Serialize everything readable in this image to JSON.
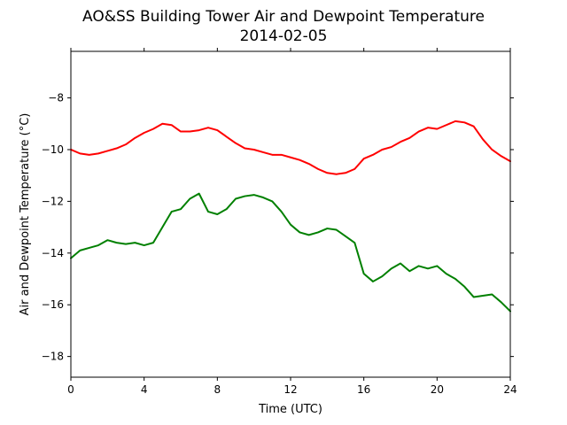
{
  "chart_data": {
    "type": "line",
    "title": "AO&SS Building Tower Air and Dewpoint Temperature",
    "subtitle": "2014-02-05",
    "xlabel": "Time (UTC)",
    "ylabel": "Air and Dewpoint Temperature (°C)",
    "xlim": [
      0,
      24
    ],
    "ylim": [
      -18.8,
      -6.2
    ],
    "xticks": [
      0,
      4,
      8,
      12,
      16,
      20,
      24
    ],
    "xtick_labels": [
      "0",
      "4",
      "8",
      "12",
      "16",
      "20",
      "24"
    ],
    "yticks": [
      -18,
      -16,
      -14,
      -12,
      -10,
      -8
    ],
    "ytick_labels": [
      "−18",
      "−16",
      "−14",
      "−12",
      "−10",
      "−8"
    ],
    "grid": false,
    "series": [
      {
        "color": "#ff0000",
        "x": [
          0,
          0.5,
          1,
          1.5,
          2,
          2.5,
          3,
          3.5,
          4,
          4.5,
          5,
          5.5,
          6,
          6.5,
          7,
          7.5,
          8,
          8.5,
          9,
          9.5,
          10,
          10.5,
          11,
          11.5,
          12,
          12.5,
          13,
          13.5,
          14,
          14.5,
          15,
          15.5,
          16,
          16.5,
          17,
          17.5,
          18,
          18.5,
          19,
          19.5,
          20,
          20.5,
          21,
          21.5,
          22,
          22.5,
          23,
          23.5,
          24
        ],
        "y": [
          -10.0,
          -10.15,
          -10.2,
          -10.15,
          -10.05,
          -9.95,
          -9.8,
          -9.55,
          -9.35,
          -9.2,
          -9.0,
          -9.05,
          -9.3,
          -9.3,
          -9.25,
          -9.15,
          -9.25,
          -9.5,
          -9.75,
          -9.95,
          -10.0,
          -10.1,
          -10.2,
          -10.2,
          -10.3,
          -10.4,
          -10.55,
          -10.75,
          -10.9,
          -10.95,
          -10.9,
          -10.75,
          -10.35,
          -10.2,
          -10.0,
          -9.9,
          -9.7,
          -9.55,
          -9.3,
          -9.15,
          -9.2,
          -9.05,
          -8.9,
          -8.95,
          -9.1,
          -9.6,
          -10.0,
          -10.25,
          -10.45
        ]
      },
      {
        "color": "#008000",
        "x": [
          0,
          0.5,
          1,
          1.5,
          2,
          2.5,
          3,
          3.5,
          4,
          4.5,
          5,
          5.5,
          6,
          6.5,
          7,
          7.5,
          8,
          8.5,
          9,
          9.5,
          10,
          10.5,
          11,
          11.5,
          12,
          12.5,
          13,
          13.5,
          14,
          14.5,
          15,
          15.5,
          16,
          16.5,
          17,
          17.5,
          18,
          18.5,
          19,
          19.5,
          20,
          20.5,
          21,
          21.5,
          22,
          22.5,
          23,
          23.5,
          24
        ],
        "y": [
          -14.2,
          -13.9,
          -13.8,
          -13.7,
          -13.5,
          -13.6,
          -13.65,
          -13.6,
          -13.7,
          -13.6,
          -13.0,
          -12.4,
          -12.3,
          -11.9,
          -11.7,
          -12.4,
          -12.5,
          -12.3,
          -11.9,
          -11.8,
          -11.75,
          -11.85,
          -12.0,
          -12.4,
          -12.9,
          -13.2,
          -13.3,
          -13.2,
          -13.05,
          -13.1,
          -13.35,
          -13.6,
          -14.8,
          -15.1,
          -14.9,
          -14.6,
          -14.4,
          -14.7,
          -14.5,
          -14.6,
          -14.5,
          -14.8,
          -15.0,
          -15.3,
          -15.7,
          -15.65,
          -15.6,
          -15.9,
          -16.25
        ]
      }
    ]
  }
}
